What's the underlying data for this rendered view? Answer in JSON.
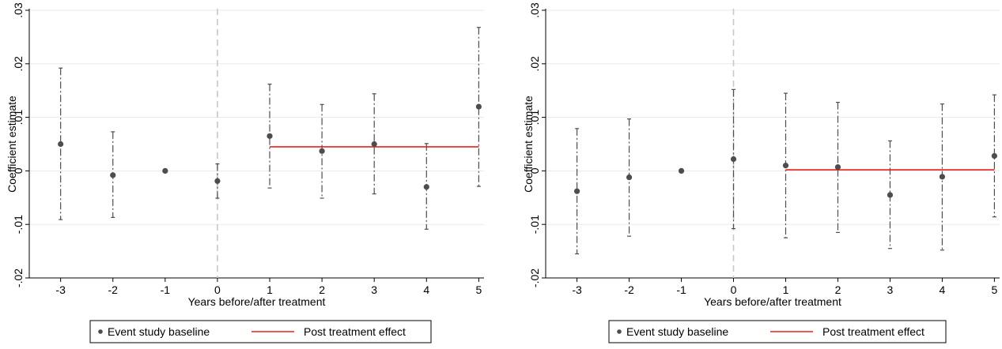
{
  "chart_data": [
    {
      "type": "scatter",
      "title": "",
      "xlabel": "Years before/after treatment",
      "ylabel": "Coefficient estimate",
      "x_ticks": [
        "-3",
        "-2",
        "-1",
        "0",
        "1",
        "2",
        "3",
        "4",
        "5"
      ],
      "y_ticks": [
        "-.02",
        "-.01",
        "0",
        ".01",
        ".02",
        ".03"
      ],
      "ylim": [
        -0.02,
        0.03
      ],
      "xlim": [
        -3.6,
        5.1
      ],
      "grid": "horizontal",
      "reference_line_x": 0,
      "legend_position": "bottom",
      "series": [
        {
          "name": "Event study baseline",
          "x": [
            -3,
            -2,
            -1,
            0,
            1,
            2,
            3,
            4,
            5
          ],
          "y": [
            0.005,
            -0.0008,
            0.0,
            -0.0019,
            0.0065,
            0.0037,
            0.005,
            -0.003,
            0.012
          ],
          "ci_low": [
            -0.0091,
            -0.0087,
            null,
            -0.0051,
            -0.0032,
            -0.0051,
            -0.0043,
            -0.0109,
            -0.0029
          ],
          "ci_high": [
            0.0192,
            0.0073,
            null,
            0.0013,
            0.0162,
            0.0124,
            0.0144,
            0.0051,
            0.0268
          ],
          "color": "#4d4d4d"
        },
        {
          "name": "Post treatment effect",
          "x": [
            1,
            5
          ],
          "y": [
            0.0045,
            0.0045
          ],
          "color": "#e8211a"
        }
      ]
    },
    {
      "type": "scatter",
      "title": "",
      "xlabel": "Years before/after treatment",
      "ylabel": "Coefficient estimate",
      "x_ticks": [
        "-3",
        "-2",
        "-1",
        "0",
        "1",
        "2",
        "3",
        "4",
        "5"
      ],
      "y_ticks": [
        "-.02",
        "-.01",
        "0",
        ".01",
        ".02",
        ".03"
      ],
      "ylim": [
        -0.02,
        0.03
      ],
      "xlim": [
        -3.6,
        5.1
      ],
      "grid": "horizontal",
      "reference_line_x": 0,
      "legend_position": "bottom",
      "series": [
        {
          "name": "Event study baseline",
          "x": [
            -3,
            -2,
            -1,
            0,
            1,
            2,
            3,
            4,
            5
          ],
          "y": [
            -0.0038,
            -0.0012,
            0.0,
            0.0022,
            0.001,
            0.0007,
            -0.0045,
            -0.0011,
            0.0028
          ],
          "ci_low": [
            -0.0155,
            -0.0122,
            null,
            -0.0108,
            -0.0125,
            -0.0115,
            -0.0145,
            -0.0148,
            -0.0086
          ],
          "ci_high": [
            0.0079,
            0.0097,
            null,
            0.0152,
            0.0145,
            0.0128,
            0.0056,
            0.0125,
            0.0142
          ],
          "color": "#4d4d4d"
        },
        {
          "name": "Post treatment effect",
          "x": [
            1,
            5
          ],
          "y": [
            0.0002,
            0.0002
          ],
          "color": "#e8211a"
        }
      ]
    }
  ]
}
